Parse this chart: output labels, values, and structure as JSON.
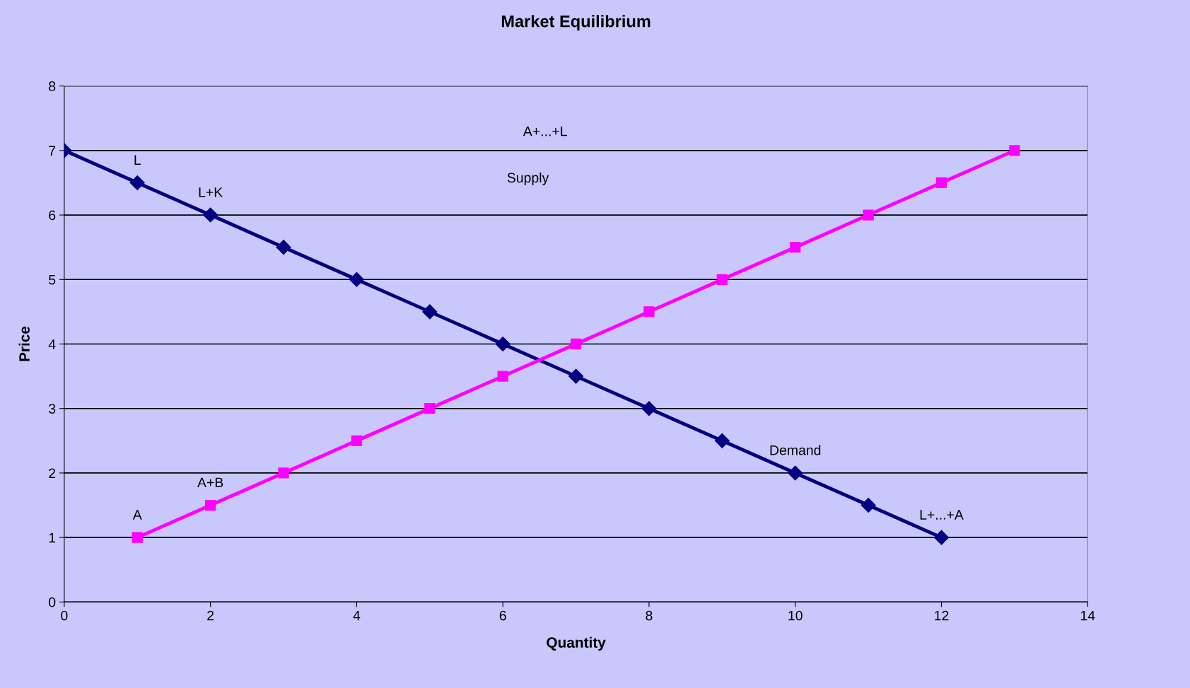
{
  "chart_data": {
    "type": "line",
    "title": "Market Equilibrium",
    "xlabel": "Quantity",
    "ylabel": "Price",
    "series": [
      {
        "color": "#000080",
        "marker": "diamond",
        "x": [
          0,
          1,
          2,
          3,
          4,
          5,
          6,
          7,
          8,
          9,
          10,
          11,
          12
        ],
        "values": [
          7,
          6.5,
          6,
          5.5,
          5,
          4.5,
          4,
          3.5,
          3,
          2.5,
          2,
          1.5,
          1
        ]
      },
      {
        "color": "#ff00ff",
        "marker": "square",
        "x": [
          1,
          2,
          3,
          4,
          5,
          6,
          7,
          8,
          9,
          10,
          11,
          12,
          13
        ],
        "values": [
          1,
          1.5,
          2,
          2.5,
          3,
          3.5,
          4,
          4.5,
          5,
          5.5,
          6,
          6.5,
          7
        ]
      }
    ],
    "annotations": [
      "A+...+L",
      "Supply",
      {
        "text": "L",
        "x": 1,
        "y": 6.5
      },
      {
        "text": "L+K",
        "x": 2,
        "y": 6
      },
      {
        "text": "A",
        "x": 1,
        "y": 1
      },
      {
        "text": "A+B",
        "x": 2,
        "y": 1.5
      },
      {
        "text": "Demand",
        "x": 10,
        "y": 2
      },
      {
        "text": "L+...+A",
        "x": 12,
        "y": 1
      }
    ],
    "xlim": [
      0,
      14
    ],
    "xticks": [
      0,
      2,
      4,
      6,
      8,
      10,
      12,
      14
    ],
    "ylim": [
      0,
      8
    ],
    "yticks": [
      0,
      1,
      2,
      3,
      4,
      5,
      6,
      7,
      8
    ],
    "grid": "y",
    "line_style": "solid"
  }
}
